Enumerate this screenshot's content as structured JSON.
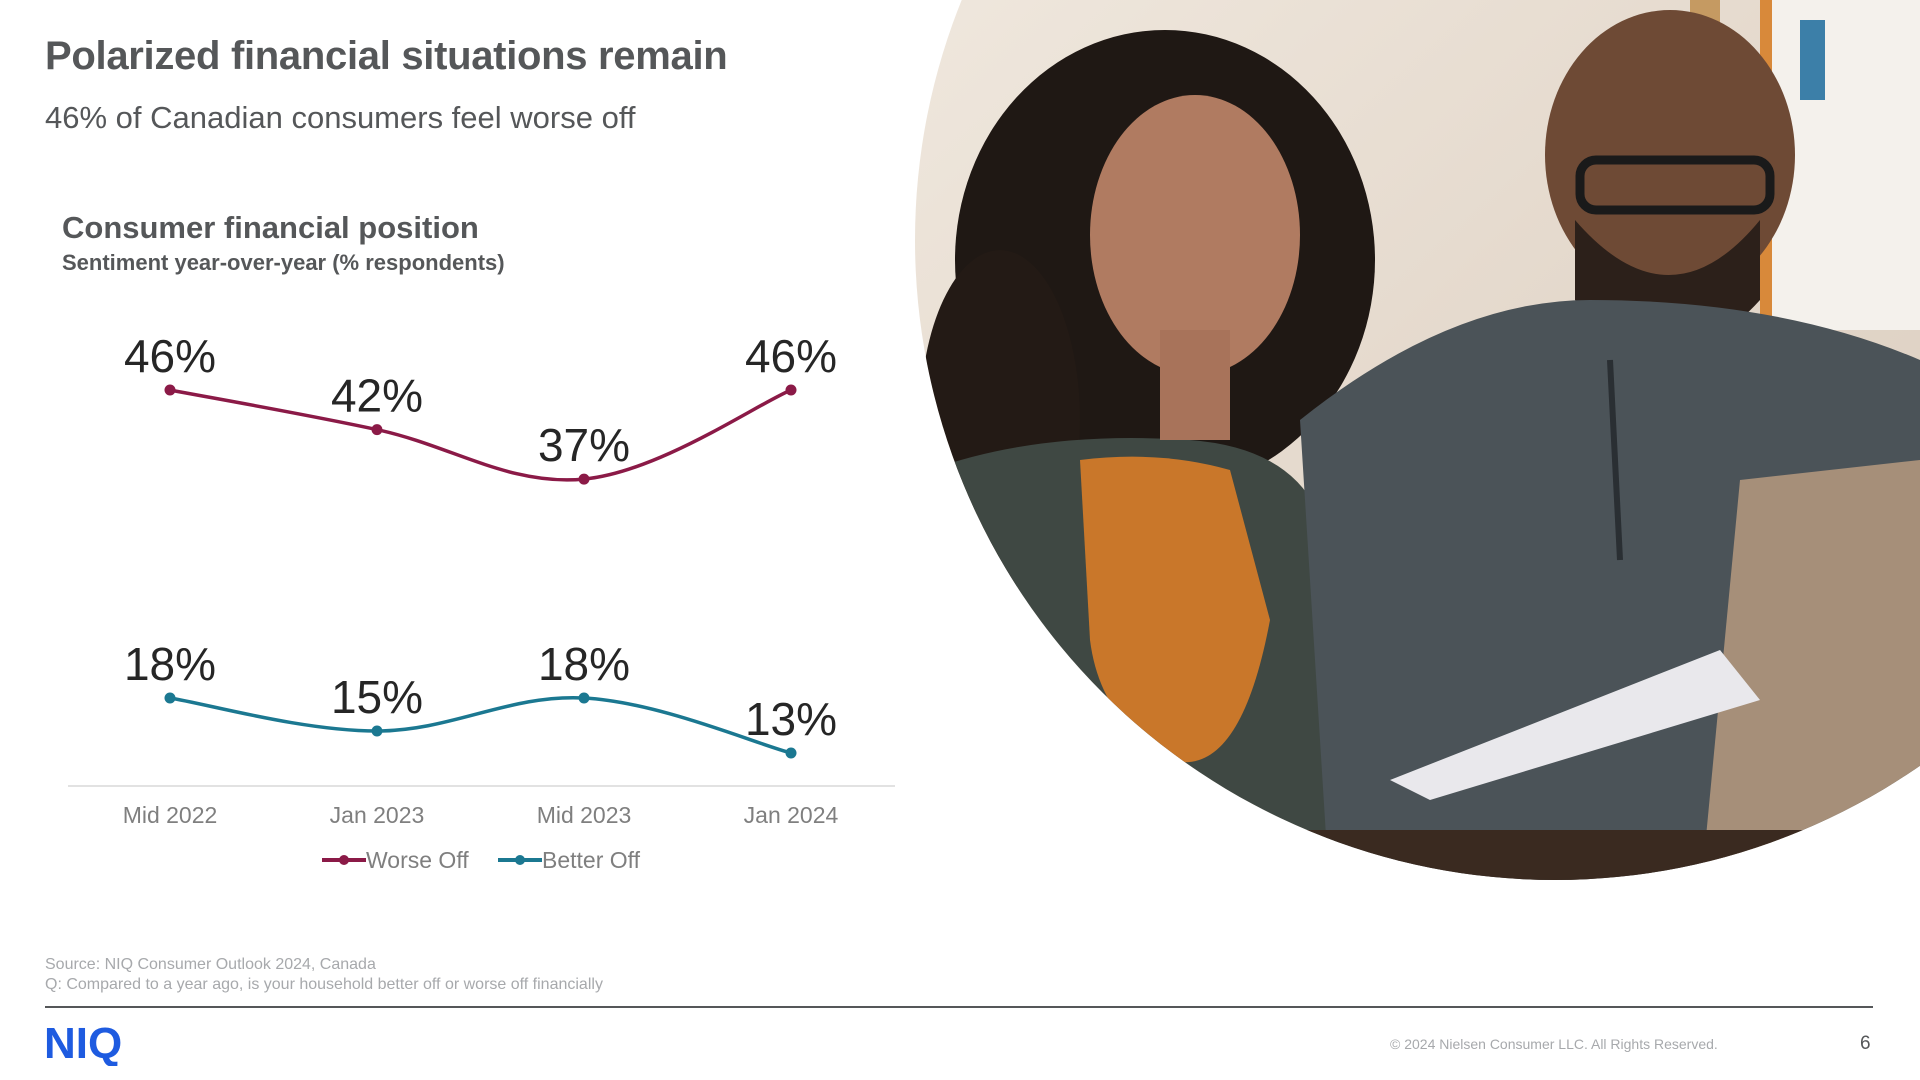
{
  "slide": {
    "title": "Polarized financial situations remain",
    "subtitle": "46% of Canadian consumers feel worse off",
    "source_line1": "Source: NIQ Consumer Outlook 2024, Canada",
    "source_line2": "Q: Compared to a year ago, is your household better off or worse off financially",
    "copyright": "© 2024 Nielsen Consumer LLC. All Rights Reserved.",
    "page_number": "6",
    "logo_text": "NIQ",
    "photo_description_icon": "couple-reviewing-finances-photo"
  },
  "colors": {
    "worse_off": "#8b1a47",
    "better_off": "#1b7891",
    "logo": "#1e5be0",
    "text": "#555759",
    "muted": "#a7a9ac"
  },
  "chart_data": {
    "type": "line",
    "title": "Consumer financial position",
    "subtitle": "Sentiment year-over-year (% respondents)",
    "categories": [
      "Mid 2022",
      "Jan 2023",
      "Mid 2023",
      "Jan 2024"
    ],
    "series": [
      {
        "name": "Worse Off",
        "values": [
          46,
          42,
          37,
          46
        ],
        "labels": [
          "46%",
          "42%",
          "37%",
          "46%"
        ]
      },
      {
        "name": "Better Off",
        "values": [
          18,
          15,
          18,
          13
        ],
        "labels": [
          "18%",
          "15%",
          "18%",
          "13%"
        ]
      }
    ],
    "unit": "%",
    "grid": false,
    "legend": "bottom"
  }
}
